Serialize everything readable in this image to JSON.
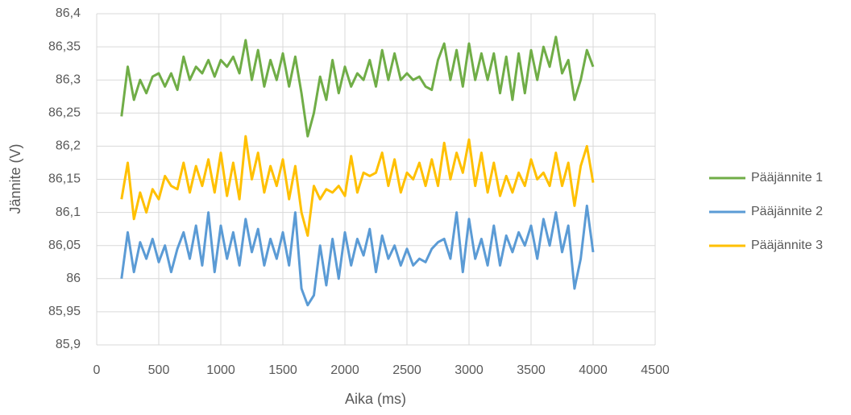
{
  "chart_data": {
    "type": "line",
    "xlabel": "Aika (ms)",
    "ylabel": "Jännite (V)",
    "x": [
      200,
      250,
      300,
      350,
      400,
      450,
      500,
      550,
      600,
      650,
      700,
      750,
      800,
      850,
      900,
      950,
      1000,
      1050,
      1100,
      1150,
      1200,
      1250,
      1300,
      1350,
      1400,
      1450,
      1500,
      1550,
      1600,
      1650,
      1700,
      1750,
      1800,
      1850,
      1900,
      1950,
      2000,
      2050,
      2100,
      2150,
      2200,
      2250,
      2300,
      2350,
      2400,
      2450,
      2500,
      2550,
      2600,
      2650,
      2700,
      2750,
      2800,
      2850,
      2900,
      2950,
      3000,
      3050,
      3100,
      3150,
      3200,
      3250,
      3300,
      3350,
      3400,
      3450,
      3500,
      3550,
      3600,
      3650,
      3700,
      3750,
      3800,
      3850,
      3900,
      3950,
      4000
    ],
    "series": [
      {
        "name": "Pääjännite 1",
        "color": "#70ad47",
        "values": [
          86.245,
          86.32,
          86.27,
          86.3,
          86.28,
          86.305,
          86.31,
          86.29,
          86.31,
          86.285,
          86.335,
          86.3,
          86.32,
          86.31,
          86.33,
          86.305,
          86.33,
          86.32,
          86.335,
          86.31,
          86.36,
          86.3,
          86.345,
          86.29,
          86.33,
          86.3,
          86.34,
          86.29,
          86.335,
          86.28,
          86.215,
          86.25,
          86.305,
          86.27,
          86.33,
          86.28,
          86.32,
          86.29,
          86.31,
          86.3,
          86.33,
          86.29,
          86.345,
          86.3,
          86.34,
          86.3,
          86.31,
          86.3,
          86.305,
          86.29,
          86.285,
          86.33,
          86.355,
          86.3,
          86.345,
          86.29,
          86.355,
          86.3,
          86.34,
          86.3,
          86.34,
          86.28,
          86.335,
          86.27,
          86.34,
          86.28,
          86.345,
          86.3,
          86.35,
          86.32,
          86.365,
          86.31,
          86.33,
          86.27,
          86.3,
          86.345,
          86.32
        ]
      },
      {
        "name": "Pääjännite 2",
        "color": "#5b9bd5",
        "values": [
          86.0,
          86.07,
          86.01,
          86.055,
          86.03,
          86.06,
          86.025,
          86.05,
          86.01,
          86.045,
          86.07,
          86.03,
          86.08,
          86.02,
          86.1,
          86.01,
          86.08,
          86.03,
          86.07,
          86.02,
          86.09,
          86.04,
          86.075,
          86.02,
          86.06,
          86.03,
          86.07,
          86.02,
          86.1,
          85.985,
          85.96,
          85.975,
          86.05,
          85.99,
          86.06,
          86.0,
          86.07,
          86.02,
          86.06,
          86.035,
          86.075,
          86.01,
          86.065,
          86.03,
          86.05,
          86.02,
          86.045,
          86.02,
          86.03,
          86.025,
          86.045,
          86.055,
          86.06,
          86.03,
          86.1,
          86.01,
          86.09,
          86.03,
          86.06,
          86.02,
          86.08,
          86.02,
          86.065,
          86.04,
          86.07,
          86.05,
          86.08,
          86.03,
          86.09,
          86.05,
          86.1,
          86.04,
          86.08,
          85.985,
          86.03,
          86.11,
          86.04
        ]
      },
      {
        "name": "Pääjännite 3",
        "color": "#ffc000",
        "values": [
          86.12,
          86.175,
          86.09,
          86.13,
          86.1,
          86.135,
          86.12,
          86.155,
          86.14,
          86.135,
          86.175,
          86.13,
          86.17,
          86.14,
          86.18,
          86.13,
          86.19,
          86.125,
          86.175,
          86.12,
          86.215,
          86.15,
          86.19,
          86.13,
          86.17,
          86.14,
          86.18,
          86.12,
          86.17,
          86.1,
          86.065,
          86.14,
          86.12,
          86.135,
          86.13,
          86.14,
          86.125,
          86.185,
          86.13,
          86.16,
          86.155,
          86.16,
          86.19,
          86.14,
          86.18,
          86.13,
          86.16,
          86.15,
          86.175,
          86.14,
          86.18,
          86.14,
          86.205,
          86.15,
          86.19,
          86.16,
          86.21,
          86.14,
          86.19,
          86.13,
          86.175,
          86.125,
          86.155,
          86.13,
          86.16,
          86.14,
          86.18,
          86.15,
          86.16,
          86.14,
          86.19,
          86.14,
          86.175,
          86.11,
          86.17,
          86.2,
          86.145
        ]
      }
    ],
    "xlim": [
      0,
      4500
    ],
    "xticks": [
      0,
      500,
      1000,
      1500,
      2000,
      2500,
      3000,
      3500,
      4000,
      4500
    ],
    "ylim": [
      85.9,
      86.4
    ],
    "yticks": [
      {
        "value": 85.9,
        "label": "85,9"
      },
      {
        "value": 85.95,
        "label": "85,95"
      },
      {
        "value": 86,
        "label": "86"
      },
      {
        "value": 86.05,
        "label": "86,05"
      },
      {
        "value": 86.1,
        "label": "86,1"
      },
      {
        "value": 86.15,
        "label": "86,15"
      },
      {
        "value": 86.2,
        "label": "86,2"
      },
      {
        "value": 86.25,
        "label": "86,25"
      },
      {
        "value": 86.3,
        "label": "86,3"
      },
      {
        "value": 86.35,
        "label": "86,35"
      },
      {
        "value": 86.4,
        "label": "86,4"
      }
    ],
    "grid": true,
    "legend": "right"
  }
}
